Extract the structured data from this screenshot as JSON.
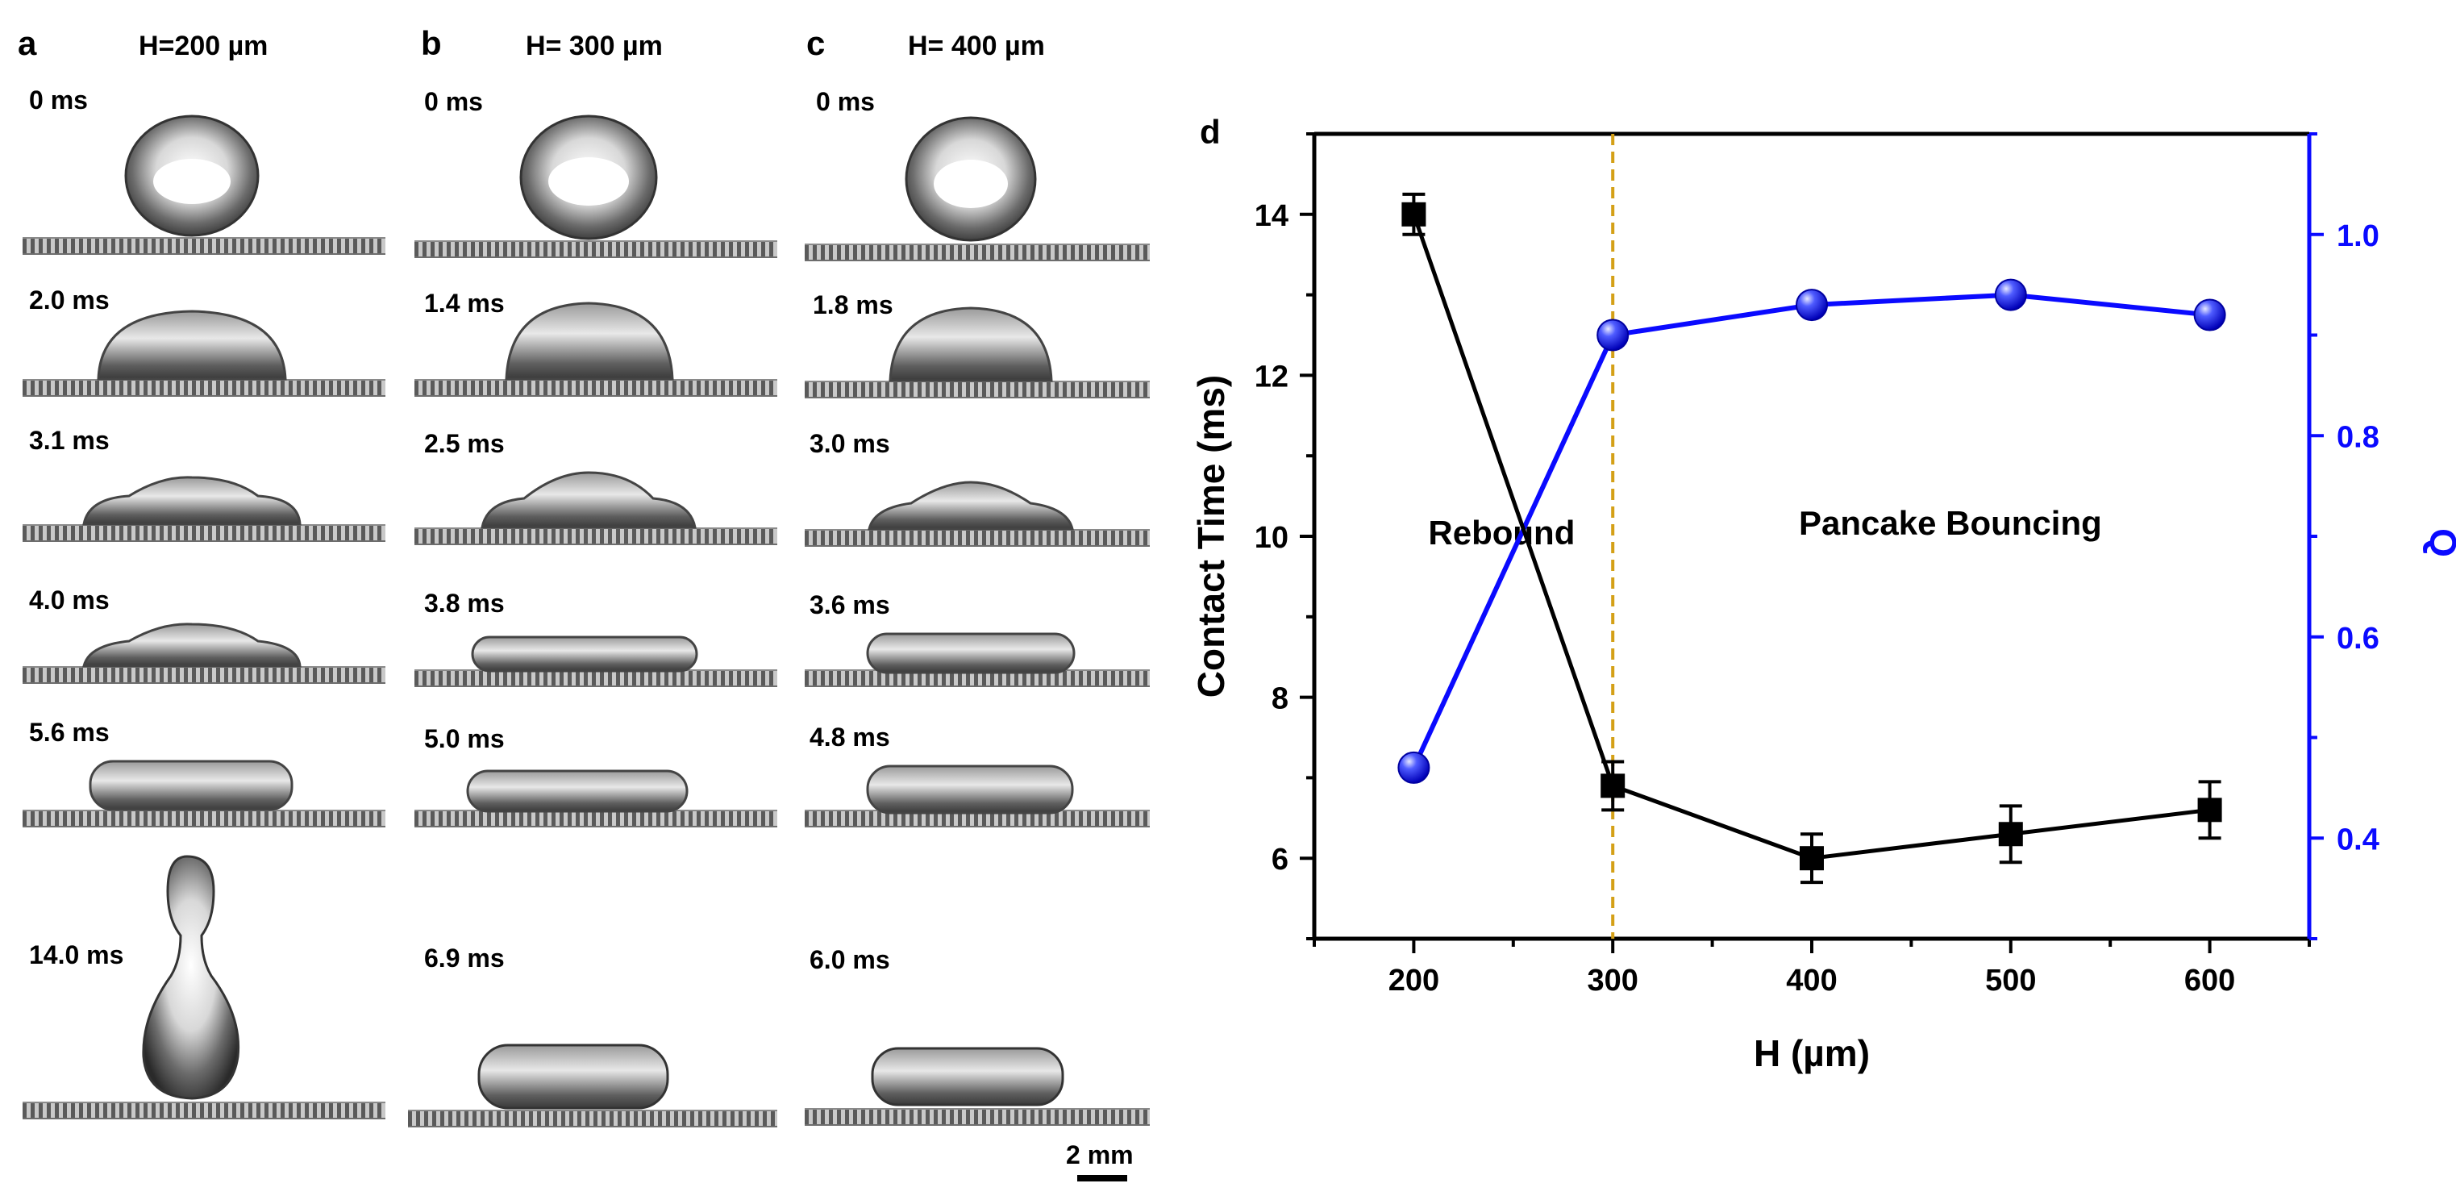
{
  "panels": {
    "a": {
      "letter": "a",
      "title": "H=200 µm",
      "times": [
        "0 ms",
        "2.0 ms",
        "3.1 ms",
        "4.0 ms",
        "5.6 ms",
        "14.0 ms"
      ]
    },
    "b": {
      "letter": "b",
      "title": "H= 300 µm",
      "times": [
        "0 ms",
        "1.4 ms",
        "2.5 ms",
        "3.8 ms",
        "5.0 ms",
        "6.9 ms"
      ]
    },
    "c": {
      "letter": "c",
      "title": "H= 400 µm",
      "times": [
        "0 ms",
        "1.8 ms",
        "3.0 ms",
        "3.6 ms",
        "4.8 ms",
        "6.0 ms"
      ]
    }
  },
  "scale_bar_label": "2 mm",
  "chart_data": {
    "type": "line",
    "panel_letter": "d",
    "x": [
      200,
      300,
      400,
      500,
      600
    ],
    "xlabel": "H (µm)",
    "xlim": [
      150,
      650
    ],
    "xticks": [
      200,
      300,
      400,
      500,
      600
    ],
    "series": [
      {
        "name": "Contact Time",
        "axis": "left",
        "color": "#000000",
        "marker": "square",
        "values": [
          14.0,
          6.9,
          6.0,
          6.3,
          6.6
        ],
        "errors": [
          0.25,
          0.3,
          0.3,
          0.35,
          0.35
        ]
      },
      {
        "name": "Q",
        "axis": "right",
        "color": "#0a0aff",
        "marker": "sphere",
        "values": [
          0.47,
          0.9,
          0.93,
          0.94,
          0.92
        ]
      }
    ],
    "ylabel_left": "Contact Time (ms)",
    "ylim_left": [
      5,
      15
    ],
    "yticks_left": [
      6,
      8,
      10,
      12,
      14
    ],
    "ylabel_right": "Q",
    "ylim_right": [
      0.3,
      1.1
    ],
    "yticks_right": [
      "0.4",
      "0.6",
      "0.8",
      "1.0"
    ],
    "divider_x": 300,
    "divider_color": "#d4a017",
    "annotations": [
      "Rebound",
      "Pancake Bouncing"
    ]
  }
}
